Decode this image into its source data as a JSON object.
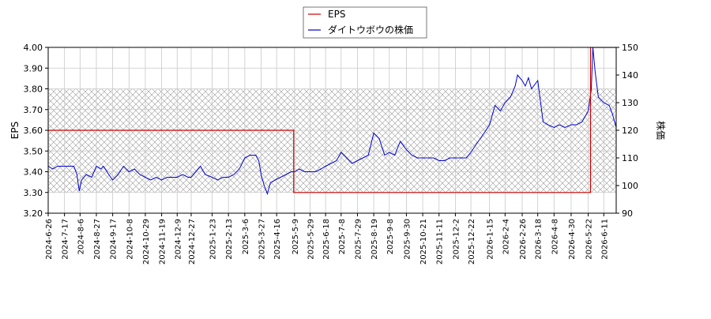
{
  "chart_data": {
    "type": "line",
    "legend": {
      "placement": "top-center",
      "entries": [
        {
          "label": "EPS",
          "color": "#cc0000"
        },
        {
          "label": "ダイトウボウの株価",
          "color": "#0000cc"
        }
      ]
    },
    "left_axis": {
      "label": "EPS",
      "ylim": [
        3.2,
        4.0
      ],
      "ticks": [
        "3.20",
        "3.30",
        "3.40",
        "3.50",
        "3.60",
        "3.70",
        "3.80",
        "3.90",
        "4.00"
      ]
    },
    "right_axis": {
      "label": "株価",
      "ylim": [
        90,
        150
      ],
      "ticks": [
        "90",
        "100",
        "110",
        "120",
        "130",
        "140",
        "150"
      ]
    },
    "x_axis": {
      "range": [
        "2024-06-26",
        "2026-06-27"
      ],
      "ticks": [
        "2024-6-26",
        "2024-7-17",
        "2024-8-6",
        "2024-8-27",
        "2024-9-17",
        "2024-10-8",
        "2024-10-29",
        "2024-11-19",
        "2024-12-9",
        "2024-12-27",
        "2025-1-23",
        "2025-2-13",
        "2025-3-6",
        "2025-3-27",
        "2025-4-16",
        "2025-5-9",
        "2025-5-29",
        "2025-6-18",
        "2025-7-8",
        "2025-7-29",
        "2025-8-19",
        "2025-9-8",
        "2025-9-30",
        "2025-10-21",
        "2025-11-11",
        "2025-12-2",
        "2025-12-22",
        "2026-1-15",
        "2026-2-4",
        "2026-2-26",
        "2026-3-18",
        "2026-4-8",
        "2026-4-30",
        "2026-5-22",
        "2026-6-11"
      ]
    },
    "grid": true,
    "hatched_band_eps": [
      3.3,
      3.8
    ],
    "series": [
      {
        "name": "EPS",
        "axis": "left",
        "color": "#cc0000",
        "step": true,
        "points": [
          [
            "2024-06-26",
            3.6
          ],
          [
            "2025-05-08",
            3.6
          ],
          [
            "2025-05-08",
            3.3
          ],
          [
            "2026-05-25",
            3.3
          ],
          [
            "2026-05-25",
            4.0
          ],
          [
            "2026-06-27",
            4.0
          ]
        ]
      },
      {
        "name": "ダイトウボウの株価",
        "axis": "right",
        "color": "#0000cc",
        "points": [
          [
            "2024-06-26",
            107
          ],
          [
            "2024-07-02",
            106
          ],
          [
            "2024-07-08",
            107
          ],
          [
            "2024-07-15",
            107
          ],
          [
            "2024-07-22",
            107
          ],
          [
            "2024-07-29",
            107
          ],
          [
            "2024-08-02",
            104
          ],
          [
            "2024-08-05",
            98
          ],
          [
            "2024-08-08",
            102
          ],
          [
            "2024-08-14",
            104
          ],
          [
            "2024-08-21",
            103
          ],
          [
            "2024-08-27",
            107
          ],
          [
            "2024-09-02",
            106
          ],
          [
            "2024-09-05",
            107
          ],
          [
            "2024-09-12",
            104
          ],
          [
            "2024-09-17",
            102
          ],
          [
            "2024-09-24",
            104
          ],
          [
            "2024-10-01",
            107
          ],
          [
            "2024-10-08",
            105
          ],
          [
            "2024-10-15",
            106
          ],
          [
            "2024-10-22",
            104
          ],
          [
            "2024-10-29",
            103
          ],
          [
            "2024-11-05",
            102
          ],
          [
            "2024-11-12",
            103
          ],
          [
            "2024-11-19",
            102
          ],
          [
            "2024-11-26",
            103
          ],
          [
            "2024-12-03",
            103
          ],
          [
            "2024-12-09",
            103
          ],
          [
            "2024-12-16",
            104
          ],
          [
            "2024-12-23",
            103
          ],
          [
            "2024-12-27",
            103
          ],
          [
            "2025-01-08",
            107
          ],
          [
            "2025-01-14",
            104
          ],
          [
            "2025-01-23",
            103
          ],
          [
            "2025-01-30",
            102
          ],
          [
            "2025-02-06",
            103
          ],
          [
            "2025-02-13",
            103
          ],
          [
            "2025-02-20",
            104
          ],
          [
            "2025-02-27",
            106
          ],
          [
            "2025-03-06",
            110
          ],
          [
            "2025-03-13",
            111
          ],
          [
            "2025-03-20",
            111
          ],
          [
            "2025-03-24",
            109
          ],
          [
            "2025-03-27",
            104
          ],
          [
            "2025-03-31",
            100
          ],
          [
            "2025-04-04",
            97
          ],
          [
            "2025-04-08",
            101
          ],
          [
            "2025-04-14",
            102
          ],
          [
            "2025-04-21",
            103
          ],
          [
            "2025-04-28",
            104
          ],
          [
            "2025-05-05",
            105
          ],
          [
            "2025-05-09",
            105
          ],
          [
            "2025-05-15",
            106
          ],
          [
            "2025-05-22",
            105
          ],
          [
            "2025-05-29",
            105
          ],
          [
            "2025-06-05",
            105
          ],
          [
            "2025-06-12",
            106
          ],
          [
            "2025-06-18",
            107
          ],
          [
            "2025-06-25",
            108
          ],
          [
            "2025-07-02",
            109
          ],
          [
            "2025-07-08",
            112
          ],
          [
            "2025-07-15",
            110
          ],
          [
            "2025-07-22",
            108
          ],
          [
            "2025-07-29",
            109
          ],
          [
            "2025-08-05",
            110
          ],
          [
            "2025-08-12",
            111
          ],
          [
            "2025-08-19",
            119
          ],
          [
            "2025-08-26",
            117
          ],
          [
            "2025-09-02",
            111
          ],
          [
            "2025-09-08",
            112
          ],
          [
            "2025-09-15",
            111
          ],
          [
            "2025-09-22",
            116
          ],
          [
            "2025-09-30",
            113
          ],
          [
            "2025-10-07",
            111
          ],
          [
            "2025-10-14",
            110
          ],
          [
            "2025-10-21",
            110
          ],
          [
            "2025-10-28",
            110
          ],
          [
            "2025-11-04",
            110
          ],
          [
            "2025-11-11",
            109
          ],
          [
            "2025-11-18",
            109
          ],
          [
            "2025-11-25",
            110
          ],
          [
            "2025-12-02",
            110
          ],
          [
            "2025-12-09",
            110
          ],
          [
            "2025-12-16",
            110
          ],
          [
            "2025-12-22",
            112
          ],
          [
            "2025-12-29",
            115
          ],
          [
            "2026-01-08",
            119
          ],
          [
            "2026-01-15",
            122
          ],
          [
            "2026-01-22",
            129
          ],
          [
            "2026-01-29",
            127
          ],
          [
            "2026-02-04",
            130
          ],
          [
            "2026-02-11",
            132
          ],
          [
            "2026-02-17",
            136
          ],
          [
            "2026-02-20",
            140
          ],
          [
            "2026-02-26",
            138
          ],
          [
            "2026-03-02",
            136
          ],
          [
            "2026-03-06",
            139
          ],
          [
            "2026-03-10",
            135
          ],
          [
            "2026-03-18",
            138
          ],
          [
            "2026-03-25",
            123
          ],
          [
            "2026-03-31",
            122
          ],
          [
            "2026-04-08",
            121
          ],
          [
            "2026-04-15",
            122
          ],
          [
            "2026-04-22",
            121
          ],
          [
            "2026-04-30",
            122
          ],
          [
            "2026-05-07",
            122
          ],
          [
            "2026-05-14",
            123
          ],
          [
            "2026-05-22",
            127
          ],
          [
            "2026-05-26",
            135
          ],
          [
            "2026-05-28",
            150
          ],
          [
            "2026-05-31",
            141
          ],
          [
            "2026-06-04",
            132
          ],
          [
            "2026-06-11",
            130
          ],
          [
            "2026-06-18",
            129
          ],
          [
            "2026-06-22",
            126
          ],
          [
            "2026-06-27",
            121
          ]
        ]
      }
    ]
  }
}
